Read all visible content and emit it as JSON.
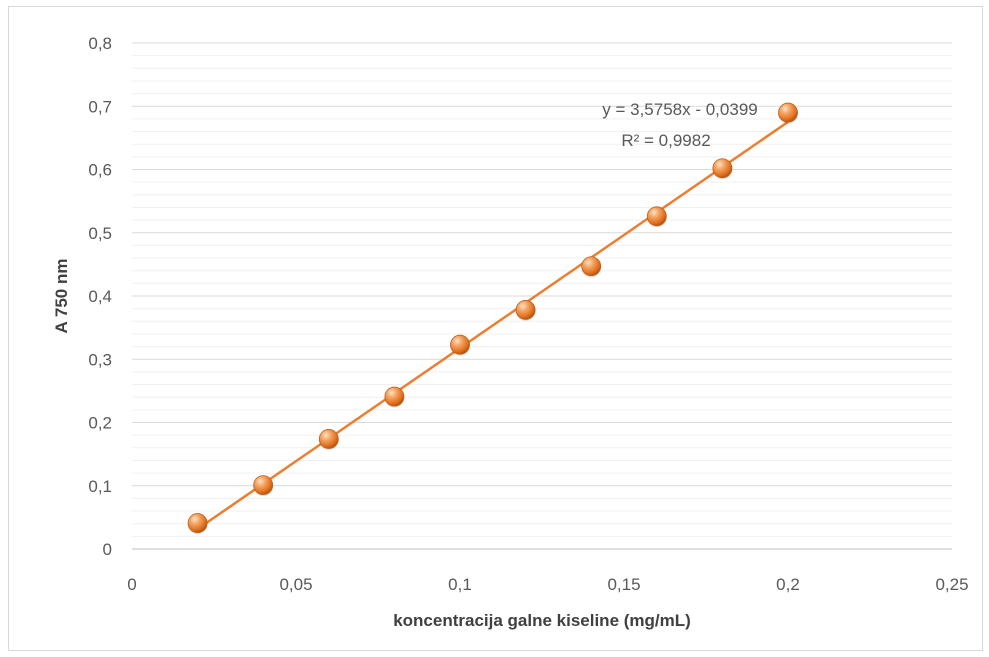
{
  "chart_data": {
    "type": "scatter",
    "xlabel": "koncentracija galne kiseline (mg/mL)",
    "ylabel": "A 750 nm",
    "xlim": [
      0,
      0.25
    ],
    "ylim": [
      0,
      0.8
    ],
    "x_ticks": [
      0,
      0.05,
      0.1,
      0.15,
      0.2,
      0.25
    ],
    "x_tick_labels": [
      "0",
      "0,05",
      "0,1",
      "0,15",
      "0,2",
      "0,25"
    ],
    "y_ticks": [
      0,
      0.1,
      0.2,
      0.3,
      0.4,
      0.5,
      0.6,
      0.7,
      0.8
    ],
    "y_tick_labels": [
      "0",
      "0,1",
      "0,2",
      "0,3",
      "0,4",
      "0,5",
      "0,6",
      "0,7",
      "0,8"
    ],
    "grid": true,
    "minor_grid_per_major": 5,
    "series": [
      {
        "color": "#ed7d31",
        "x": [
          0.02,
          0.04,
          0.06,
          0.08,
          0.1,
          0.12,
          0.14,
          0.16,
          0.18,
          0.2
        ],
        "y": [
          0.041,
          0.101,
          0.174,
          0.241,
          0.323,
          0.378,
          0.447,
          0.526,
          0.602,
          0.69
        ]
      }
    ],
    "trendline": {
      "type": "linear",
      "slope": 3.5758,
      "intercept": -0.0399,
      "x_range": [
        0.02,
        0.2
      ],
      "color": "#ed7d31",
      "equation_label": "y = 3,5758x - 0,0399",
      "r2_label": "R² = 0,9982"
    }
  }
}
